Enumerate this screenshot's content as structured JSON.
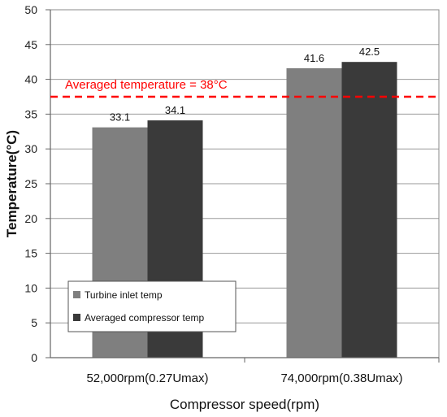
{
  "chart_data": {
    "type": "bar",
    "title": "",
    "xlabel": "Compressor speed(rpm)",
    "ylabel": "Temperature(°C)",
    "ylim": [
      0,
      50
    ],
    "yticks": [
      0,
      5,
      10,
      15,
      20,
      25,
      30,
      35,
      40,
      45,
      50
    ],
    "grid": true,
    "legend_position": "bottom-left",
    "categories": [
      "52,000rpm(0.27Umax)",
      "74,000rpm(0.38Umax)"
    ],
    "series": [
      {
        "name": "Turbine inlet temp",
        "values": [
          33.1,
          41.6
        ],
        "labels": [
          "33.1",
          "41.6"
        ],
        "color": "#7f7f7f"
      },
      {
        "name": "Averaged compressor temp",
        "values": [
          34.1,
          42.5
        ],
        "labels": [
          "34.1",
          "42.5"
        ],
        "color": "#3a3a3a"
      }
    ],
    "reference_line": {
      "value": 37.5,
      "label": "Averaged temperature  = 38°C",
      "color": "#ff0000",
      "style": "dashed"
    }
  }
}
